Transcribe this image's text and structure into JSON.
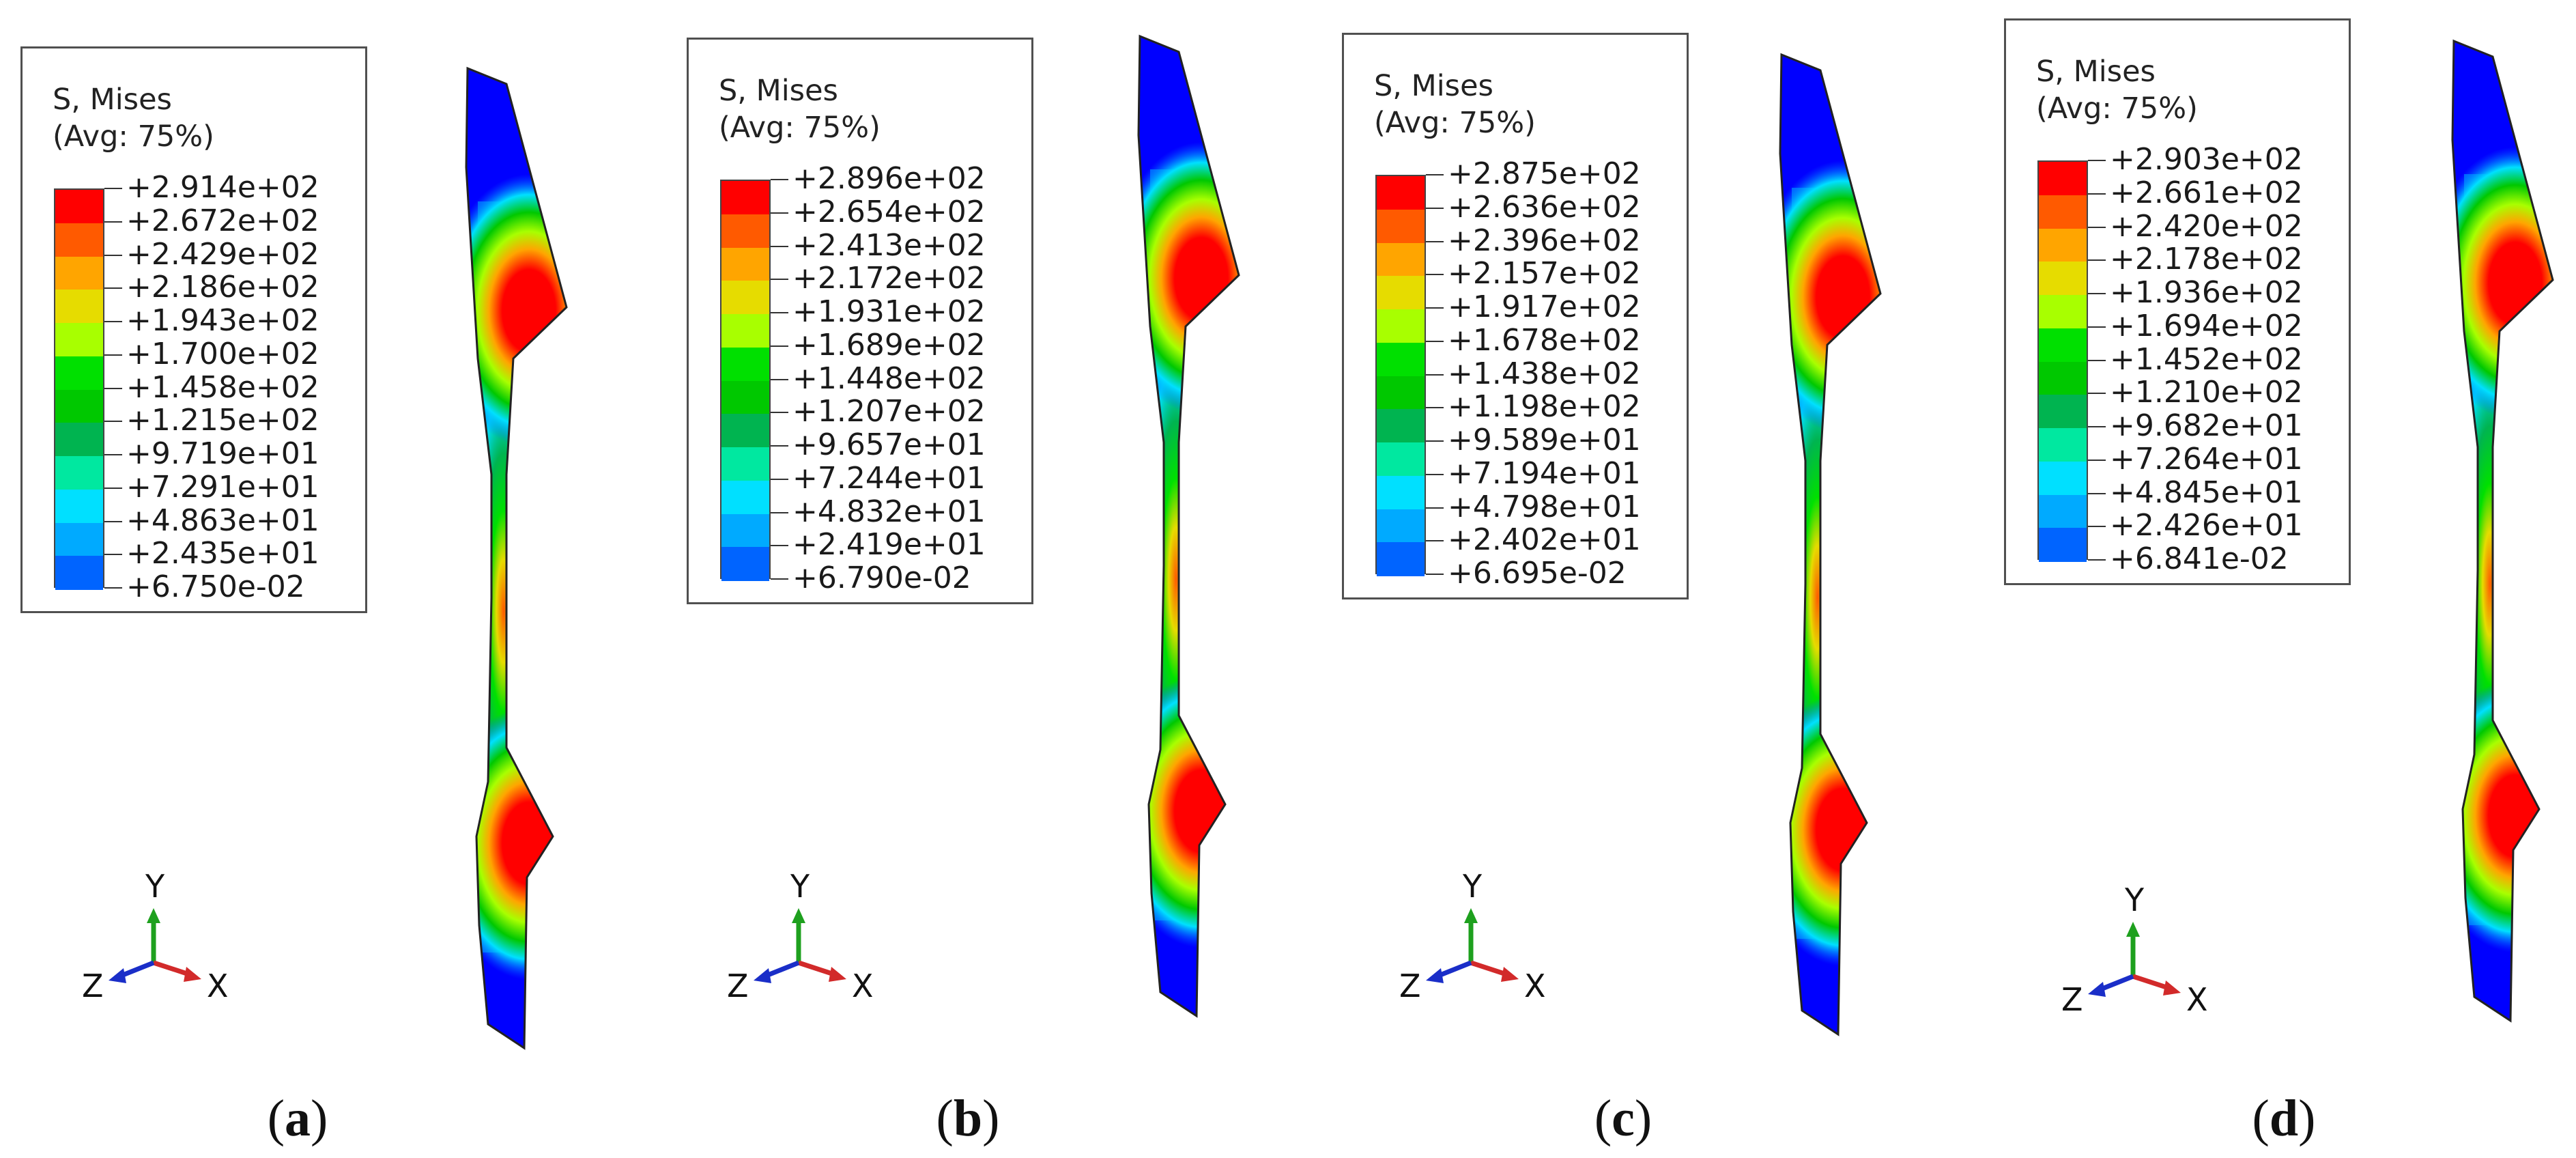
{
  "colors": {
    "contour_bands": [
      "#ff0000",
      "#ff5a00",
      "#ffa500",
      "#e6dc00",
      "#a8ff00",
      "#00e000",
      "#00c800",
      "#00b450",
      "#00e8a0",
      "#00e0ff",
      "#00aaff",
      "#0064ff",
      "#0000ff"
    ],
    "axis_x": "#d22a2a",
    "axis_y": "#1ea01e",
    "axis_z": "#1a2ec8"
  },
  "panels": [
    {
      "label_open": "(",
      "label_letter": "a",
      "label_close": ")",
      "legend": {
        "title": "S, Mises",
        "subtitle": "(Avg: 75%)",
        "values": [
          "+2.914e+02",
          "+2.672e+02",
          "+2.429e+02",
          "+2.186e+02",
          "+1.943e+02",
          "+1.700e+02",
          "+1.458e+02",
          "+1.215e+02",
          "+9.719e+01",
          "+7.291e+01",
          "+4.863e+01",
          "+2.435e+01",
          "+6.750e-02"
        ]
      },
      "triad": {
        "x": "X",
        "y": "Y",
        "z": "Z"
      },
      "icons": {
        "triad": "coordinate-triad-icon",
        "part": "stress-contour-part"
      }
    },
    {
      "label_open": "(",
      "label_letter": "b",
      "label_close": ")",
      "legend": {
        "title": "S, Mises",
        "subtitle": "(Avg: 75%)",
        "values": [
          "+2.896e+02",
          "+2.654e+02",
          "+2.413e+02",
          "+2.172e+02",
          "+1.931e+02",
          "+1.689e+02",
          "+1.448e+02",
          "+1.207e+02",
          "+9.657e+01",
          "+7.244e+01",
          "+4.832e+01",
          "+2.419e+01",
          "+6.790e-02"
        ]
      },
      "triad": {
        "x": "X",
        "y": "Y",
        "z": "Z"
      },
      "icons": {
        "triad": "coordinate-triad-icon",
        "part": "stress-contour-part"
      }
    },
    {
      "label_open": "(",
      "label_letter": "c",
      "label_close": ")",
      "legend": {
        "title": "S, Mises",
        "subtitle": "(Avg: 75%)",
        "values": [
          "+2.875e+02",
          "+2.636e+02",
          "+2.396e+02",
          "+2.157e+02",
          "+1.917e+02",
          "+1.678e+02",
          "+1.438e+02",
          "+1.198e+02",
          "+9.589e+01",
          "+7.194e+01",
          "+4.798e+01",
          "+2.402e+01",
          "+6.695e-02"
        ]
      },
      "triad": {
        "x": "X",
        "y": "Y",
        "z": "Z"
      },
      "icons": {
        "triad": "coordinate-triad-icon",
        "part": "stress-contour-part"
      }
    },
    {
      "label_open": "(",
      "label_letter": "d",
      "label_close": ")",
      "legend": {
        "title": "S, Mises",
        "subtitle": "(Avg: 75%)",
        "values": [
          "+2.903e+02",
          "+2.661e+02",
          "+2.420e+02",
          "+2.178e+02",
          "+1.936e+02",
          "+1.694e+02",
          "+1.452e+02",
          "+1.210e+02",
          "+9.682e+01",
          "+7.264e+01",
          "+4.845e+01",
          "+2.426e+01",
          "+6.841e-02"
        ]
      },
      "triad": {
        "x": "X",
        "y": "Y",
        "z": "Z"
      },
      "icons": {
        "triad": "coordinate-triad-icon",
        "part": "stress-contour-part"
      }
    }
  ]
}
